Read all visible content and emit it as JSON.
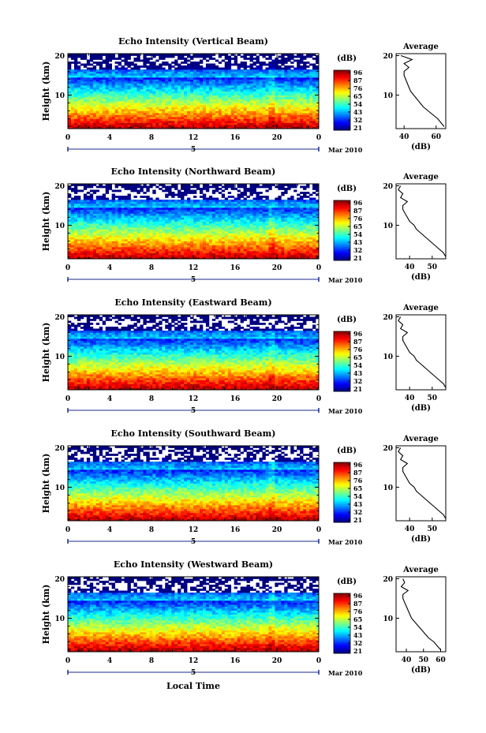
{
  "figure": {
    "x_label": "Local Time",
    "date_label": "Mar 2010",
    "day_label": "5",
    "profile_title": "Average",
    "colorbar_unit": "(dB)",
    "profile_xlabel": "(dB)"
  },
  "chart_data": [
    {
      "type": "heatmap",
      "title": "Echo Intensity (Vertical Beam)",
      "ylabel": "Height (km)",
      "xlabel": "",
      "x_ticks": [
        "0",
        "4",
        "8",
        "12",
        "16",
        "20",
        "0"
      ],
      "xlim": [
        0,
        24
      ],
      "y_ticks": [
        "10",
        "20"
      ],
      "ylim": [
        1.5,
        20.5
      ],
      "colorbar": {
        "label": "(dB)",
        "ticks": [
          "96",
          "87",
          "76",
          "65",
          "54",
          "43",
          "32",
          "21"
        ]
      },
      "profile": {
        "title": "Average",
        "xlabel": "(dB)",
        "x_ticks": [
          "40",
          "60"
        ],
        "xlim": [
          35,
          66
        ],
        "y_ticks": [
          "10",
          "20"
        ],
        "height_km": [
          2,
          3,
          4,
          5,
          6,
          7,
          8,
          9,
          10,
          11,
          12,
          13,
          14,
          15,
          16,
          17,
          18,
          19,
          20
        ],
        "value_db": [
          65,
          63,
          61,
          58,
          55,
          52,
          50,
          48,
          46,
          44,
          43,
          42,
          41,
          40,
          40,
          43,
          40,
          45,
          38
        ]
      }
    },
    {
      "type": "heatmap",
      "title": "Echo Intensity (Northward Beam)",
      "ylabel": "Height (km)",
      "xlabel": "",
      "x_ticks": [
        "0",
        "4",
        "8",
        "12",
        "16",
        "20",
        "0"
      ],
      "xlim": [
        0,
        24
      ],
      "y_ticks": [
        "10",
        "20"
      ],
      "ylim": [
        1.5,
        20.5
      ],
      "colorbar": {
        "label": "(dB)",
        "ticks": [
          "96",
          "87",
          "76",
          "65",
          "54",
          "43",
          "32",
          "21"
        ]
      },
      "profile": {
        "title": "Average",
        "xlabel": "(dB)",
        "x_ticks": [
          "40",
          "50"
        ],
        "xlim": [
          34,
          56
        ],
        "y_ticks": [
          "10",
          "20"
        ],
        "height_km": [
          2,
          3,
          4,
          5,
          6,
          7,
          8,
          9,
          10,
          11,
          12,
          13,
          14,
          15,
          16,
          17,
          18,
          19,
          20
        ],
        "value_db": [
          56,
          55,
          53,
          51,
          49,
          47,
          45,
          43,
          42,
          40,
          39,
          38,
          37,
          37,
          39,
          36,
          37,
          35,
          36
        ]
      }
    },
    {
      "type": "heatmap",
      "title": "Echo Intensity (Eastward Beam)",
      "ylabel": "Height (km)",
      "xlabel": "",
      "x_ticks": [
        "0",
        "4",
        "8",
        "12",
        "16",
        "20",
        "0"
      ],
      "xlim": [
        0,
        24
      ],
      "y_ticks": [
        "10",
        "20"
      ],
      "ylim": [
        1.5,
        20.5
      ],
      "colorbar": {
        "label": "(dB)",
        "ticks": [
          "96",
          "87",
          "76",
          "65",
          "54",
          "43",
          "32",
          "21"
        ]
      },
      "profile": {
        "title": "Average",
        "xlabel": "(dB)",
        "x_ticks": [
          "40",
          "50"
        ],
        "xlim": [
          34,
          56
        ],
        "y_ticks": [
          "10",
          "20"
        ],
        "height_km": [
          2,
          3,
          4,
          5,
          6,
          7,
          8,
          9,
          10,
          11,
          12,
          13,
          14,
          15,
          16,
          17,
          18,
          19,
          20
        ],
        "value_db": [
          56,
          55,
          53,
          51,
          49,
          47,
          45,
          43,
          42,
          40,
          39,
          38,
          37,
          37,
          39,
          36,
          37,
          35,
          36
        ]
      }
    },
    {
      "type": "heatmap",
      "title": "Echo Intensity (Southward Beam)",
      "ylabel": "Height (km)",
      "xlabel": "",
      "x_ticks": [
        "0",
        "4",
        "8",
        "12",
        "16",
        "20",
        "0"
      ],
      "xlim": [
        0,
        24
      ],
      "y_ticks": [
        "10",
        "20"
      ],
      "ylim": [
        1.5,
        20.5
      ],
      "colorbar": {
        "label": "(dB)",
        "ticks": [
          "96",
          "87",
          "76",
          "65",
          "54",
          "43",
          "32",
          "21"
        ]
      },
      "profile": {
        "title": "Average",
        "xlabel": "(dB)",
        "x_ticks": [
          "40",
          "50"
        ],
        "xlim": [
          34,
          56
        ],
        "y_ticks": [
          "10",
          "20"
        ],
        "height_km": [
          2,
          3,
          4,
          5,
          6,
          7,
          8,
          9,
          10,
          11,
          12,
          13,
          14,
          15,
          16,
          17,
          18,
          19,
          20
        ],
        "value_db": [
          56,
          55,
          53,
          51,
          49,
          47,
          45,
          43,
          42,
          40,
          39,
          38,
          37,
          37,
          39,
          36,
          37,
          35,
          36
        ]
      }
    },
    {
      "type": "heatmap",
      "title": "Echo Intensity (Westward Beam)",
      "ylabel": "Height (km)",
      "xlabel": "Local Time",
      "x_ticks": [
        "0",
        "4",
        "8",
        "12",
        "16",
        "20",
        "0"
      ],
      "xlim": [
        0,
        24
      ],
      "y_ticks": [
        "10",
        "20"
      ],
      "ylim": [
        1.5,
        20.5
      ],
      "colorbar": {
        "label": "(dB)",
        "ticks": [
          "96",
          "87",
          "76",
          "65",
          "54",
          "43",
          "32",
          "21"
        ]
      },
      "profile": {
        "title": "Average",
        "xlabel": "(dB)",
        "x_ticks": [
          "40",
          "50",
          "60"
        ],
        "xlim": [
          34,
          63
        ],
        "y_ticks": [
          "10",
          "20"
        ],
        "height_km": [
          2,
          3,
          4,
          5,
          6,
          7,
          8,
          9,
          10,
          11,
          12,
          13,
          14,
          15,
          16,
          17,
          18,
          19,
          20
        ],
        "value_db": [
          60,
          58,
          56,
          53,
          51,
          49,
          47,
          45,
          43,
          42,
          41,
          40,
          39,
          38,
          38,
          41,
          37,
          39,
          38
        ]
      }
    }
  ]
}
